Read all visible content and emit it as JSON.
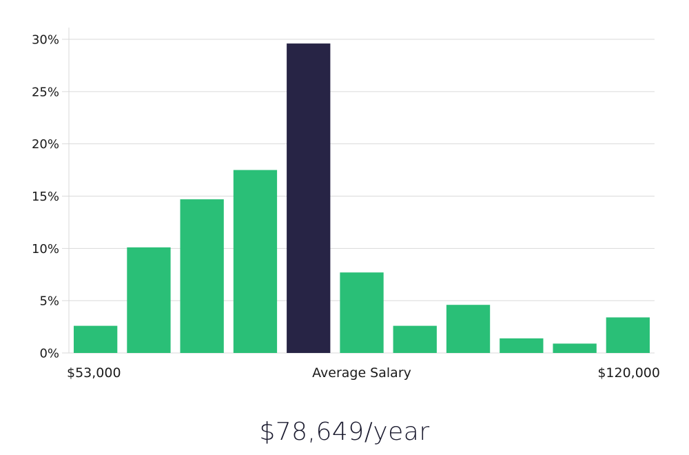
{
  "chart_data": {
    "type": "bar",
    "values": [
      2.6,
      10.1,
      14.7,
      17.5,
      29.6,
      7.7,
      2.6,
      4.6,
      1.4,
      0.9,
      3.4
    ],
    "highlight_index": 4,
    "ylim": [
      0,
      30
    ],
    "yticks": [
      "0%",
      "5%",
      "10%",
      "15%",
      "20%",
      "25%",
      "30%"
    ],
    "ytick_values": [
      0,
      5,
      10,
      15,
      20,
      25,
      30
    ],
    "x_labels": {
      "left": "$53,000",
      "center": "Average Salary",
      "right": "$120,000"
    },
    "colors": {
      "bar": "#2abf77",
      "highlight": "#272445",
      "grid": "#d9d9d9"
    }
  },
  "summary": {
    "average_salary": "$78,649/year"
  }
}
